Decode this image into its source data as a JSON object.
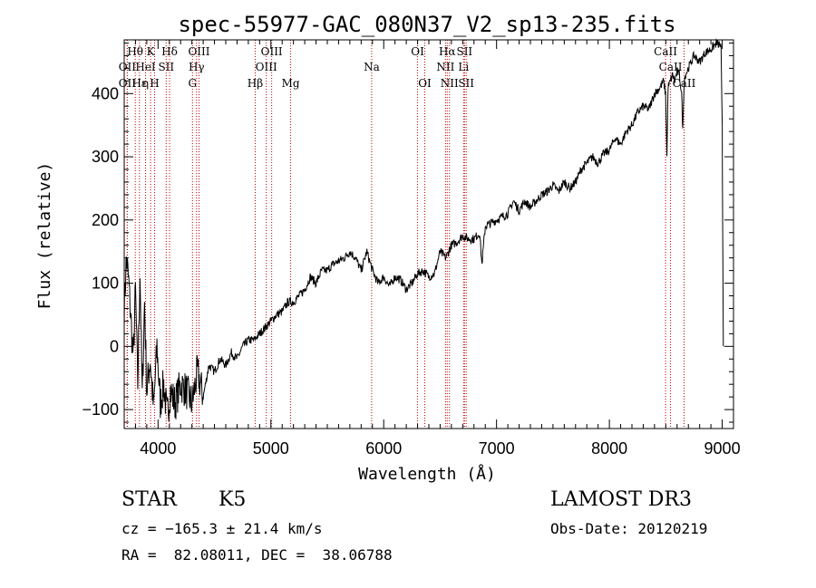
{
  "chart_data": {
    "type": "line",
    "title": "spec-55977-GAC_080N37_V2_sp13-235.fits",
    "xlabel": "Wavelength (Å)",
    "ylabel": "Flux (relative)",
    "xlim": [
      3700,
      9100
    ],
    "ylim": [
      -130,
      485
    ],
    "xticks": [
      4000,
      5000,
      6000,
      7000,
      8000,
      9000
    ],
    "yticks": [
      -100,
      0,
      100,
      200,
      300,
      400
    ],
    "grid": false,
    "series": [
      {
        "name": "spectrum",
        "x": [
          3700,
          3720,
          3740,
          3760,
          3780,
          3800,
          3820,
          3840,
          3860,
          3880,
          3900,
          3930,
          3960,
          3990,
          4020,
          4050,
          4080,
          4110,
          4150,
          4200,
          4250,
          4300,
          4350,
          4400,
          4450,
          4500,
          4550,
          4600,
          4650,
          4700,
          4750,
          4800,
          4850,
          4900,
          4950,
          5000,
          5050,
          5100,
          5150,
          5200,
          5250,
          5300,
          5350,
          5400,
          5450,
          5500,
          5550,
          5600,
          5650,
          5700,
          5750,
          5800,
          5850,
          5900,
          5950,
          6000,
          6050,
          6100,
          6150,
          6200,
          6250,
          6300,
          6350,
          6400,
          6450,
          6500,
          6550,
          6600,
          6650,
          6700,
          6750,
          6800,
          6850,
          6870,
          6900,
          6950,
          7000,
          7050,
          7100,
          7150,
          7200,
          7250,
          7300,
          7350,
          7400,
          7450,
          7500,
          7550,
          7600,
          7650,
          7700,
          7750,
          7800,
          7850,
          7900,
          7950,
          8000,
          8050,
          8100,
          8150,
          8200,
          8250,
          8300,
          8350,
          8400,
          8450,
          8480,
          8498,
          8510,
          8520,
          8542,
          8560,
          8580,
          8600,
          8620,
          8640,
          8650,
          8662,
          8675,
          8700,
          8750,
          8800,
          8850,
          8900,
          8950,
          8990,
          9000,
          9002,
          9010
        ],
        "y": [
          60,
          140,
          100,
          40,
          -20,
          90,
          -60,
          120,
          -80,
          70,
          -70,
          -20,
          -100,
          0,
          -90,
          -60,
          -110,
          -70,
          -90,
          -60,
          -70,
          -90,
          -40,
          -80,
          -30,
          -40,
          -20,
          -30,
          -10,
          -20,
          0,
          10,
          10,
          20,
          30,
          40,
          50,
          55,
          70,
          70,
          80,
          90,
          110,
          100,
          120,
          120,
          130,
          135,
          140,
          150,
          140,
          120,
          150,
          120,
          100,
          110,
          95,
          110,
          105,
          90,
          100,
          115,
          120,
          110,
          115,
          150,
          140,
          160,
          165,
          175,
          170,
          170,
          180,
          130,
          190,
          195,
          200,
          205,
          210,
          230,
          215,
          230,
          220,
          230,
          240,
          245,
          255,
          245,
          260,
          250,
          260,
          280,
          290,
          300,
          290,
          305,
          310,
          330,
          320,
          340,
          350,
          370,
          380,
          375,
          400,
          410,
          420,
          400,
          300,
          410,
          420,
          430,
          420,
          435,
          430,
          400,
          340,
          420,
          430,
          440,
          460,
          450,
          465,
          470,
          480,
          475,
          350,
          260,
          0
        ]
      }
    ],
    "line_markers": [
      {
        "label": "Hθ",
        "x": 3798,
        "row": 1
      },
      {
        "label": "OII",
        "x": 3727,
        "row": 2
      },
      {
        "label": "OII",
        "x": 3727,
        "row": 3
      },
      {
        "label": "Hε",
        "x": 3835,
        "row": 3
      },
      {
        "label": "HeI",
        "x": 3889,
        "row": 2
      },
      {
        "label": "K",
        "x": 3934,
        "row": 1
      },
      {
        "label": "η",
        "x": 3889,
        "row": 3
      },
      {
        "label": "H",
        "x": 3969,
        "row": 3
      },
      {
        "label": "SII",
        "x": 4072,
        "row": 2
      },
      {
        "label": "Hδ",
        "x": 4102,
        "row": 1
      },
      {
        "label": "OIII",
        "x": 4363,
        "row": 1
      },
      {
        "label": "Hγ",
        "x": 4341,
        "row": 2
      },
      {
        "label": "G",
        "x": 4305,
        "row": 3
      },
      {
        "label": "OIII",
        "x": 5007,
        "row": 1
      },
      {
        "label": "OIII",
        "x": 4959,
        "row": 2
      },
      {
        "label": "Hβ",
        "x": 4861,
        "row": 3
      },
      {
        "label": "Mg",
        "x": 5175,
        "row": 3
      },
      {
        "label": "Na",
        "x": 5893,
        "row": 2
      },
      {
        "label": "OI",
        "x": 6300,
        "row": 1
      },
      {
        "label": "OI",
        "x": 6364,
        "row": 3
      },
      {
        "label": "Hα",
        "x": 6563,
        "row": 1
      },
      {
        "label": "SII",
        "x": 6716,
        "row": 1
      },
      {
        "label": "NII",
        "x": 6548,
        "row": 2
      },
      {
        "label": "Li",
        "x": 6708,
        "row": 2
      },
      {
        "label": "NII",
        "x": 6583,
        "row": 3
      },
      {
        "label": "SII",
        "x": 6731,
        "row": 3
      },
      {
        "label": "CaII",
        "x": 8498,
        "row": 1
      },
      {
        "label": "CaII",
        "x": 8542,
        "row": 2
      },
      {
        "label": "CaII",
        "x": 8662,
        "row": 3
      }
    ]
  },
  "info": {
    "object_class": "STAR",
    "subclass": "K5",
    "survey": "LAMOST DR3",
    "velocity": "cz = −165.3 ± 21.4 km/s",
    "obs_date": "Obs-Date: 20120219",
    "coords": "RA =  82.08011, DEC =  38.06788"
  },
  "colors": {
    "line_marker": "#c00000",
    "spectrum": "#000000"
  }
}
